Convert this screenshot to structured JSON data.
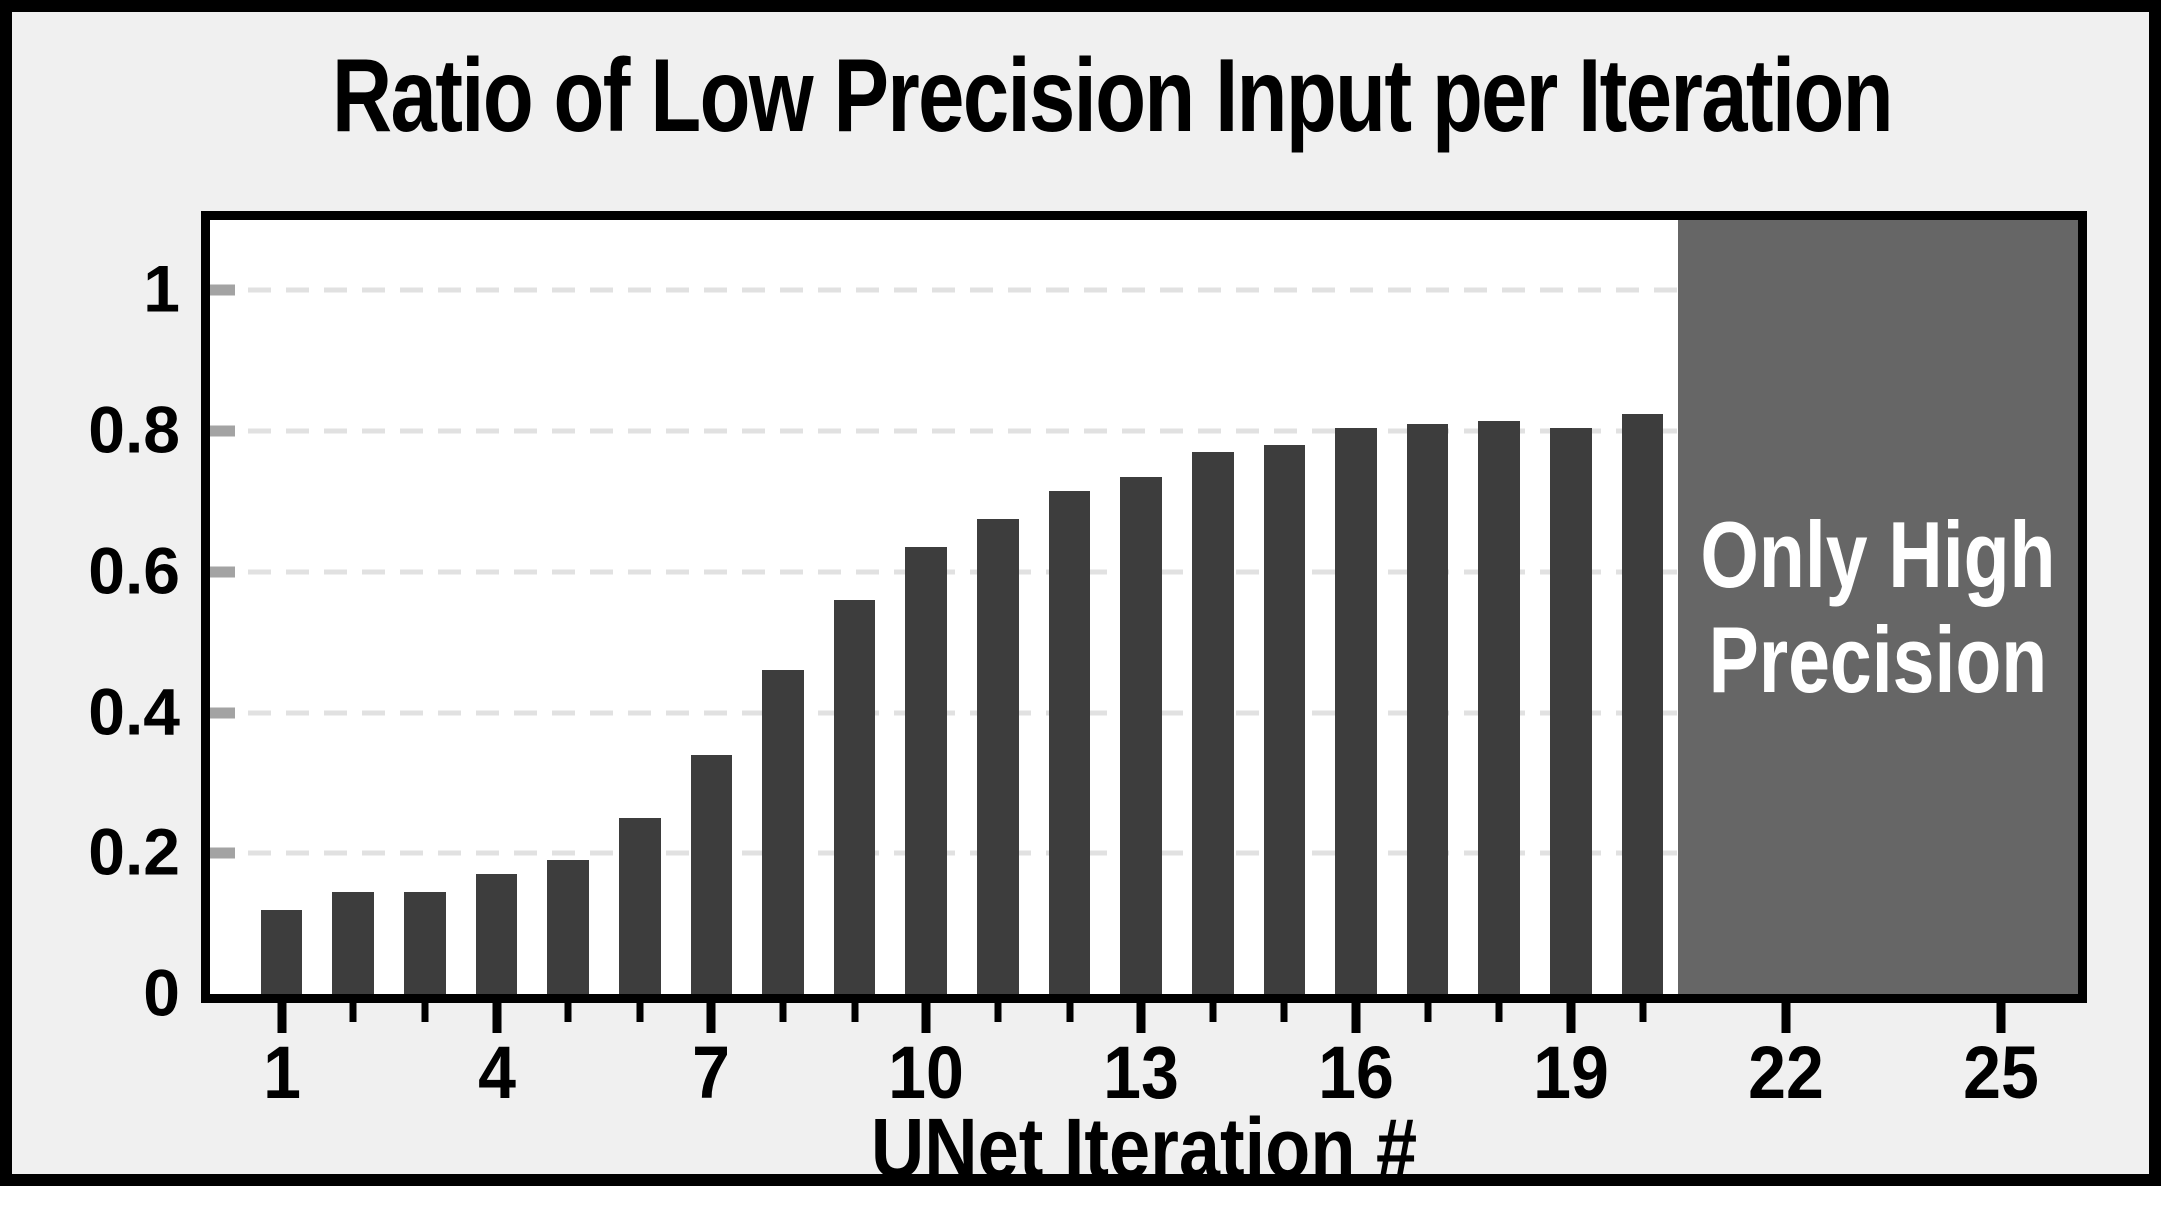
{
  "chart_data": {
    "type": "bar",
    "title": "Ratio of Low Precision Input per Iteration",
    "xlabel": "UNet Iteration #",
    "ylabel": "",
    "x": [
      1,
      2,
      3,
      4,
      5,
      6,
      7,
      8,
      9,
      10,
      11,
      12,
      13,
      14,
      15,
      16,
      17,
      18,
      19,
      20
    ],
    "values": [
      0.12,
      0.145,
      0.145,
      0.17,
      0.19,
      0.25,
      0.34,
      0.46,
      0.56,
      0.635,
      0.675,
      0.715,
      0.735,
      0.77,
      0.78,
      0.805,
      0.81,
      0.815,
      0.805,
      0.825
    ],
    "x_major_ticks": [
      1,
      4,
      7,
      10,
      13,
      16,
      19,
      22,
      25
    ],
    "x_major_tick_labels": [
      "1",
      "4",
      "7",
      "10",
      "13",
      "16",
      "19",
      "22",
      "25"
    ],
    "x_minor_ticks": [
      2,
      3,
      5,
      6,
      8,
      9,
      11,
      12,
      14,
      15,
      17,
      18,
      20
    ],
    "y_ticks": [
      0,
      0.2,
      0.4,
      0.6,
      0.8,
      1
    ],
    "y_tick_labels": [
      "0",
      "0.2",
      "0.4",
      "0.6",
      "0.8",
      "1"
    ],
    "xlim": [
      0,
      26.08
    ],
    "ylim": [
      0,
      1.1
    ],
    "grid": "horizontal dashed lines at labeled y ticks",
    "legend": "none",
    "bar_width_fraction": 0.58,
    "annotation": {
      "lines": [
        "Only High",
        "Precision"
      ],
      "text": "Only High Precision",
      "x_start": 20.5,
      "x_end": 26.08
    },
    "colors": {
      "bar": "#3d3d3d",
      "shaded_region": "#666666",
      "annotation_text": "#ffffff",
      "figure_background": "#f0f0f0",
      "plot_background": "#ffffff",
      "gridline": "#e1e1e1",
      "y_tick_stub": "#a3a3a3",
      "border": "#000000",
      "text": "#000000"
    }
  }
}
